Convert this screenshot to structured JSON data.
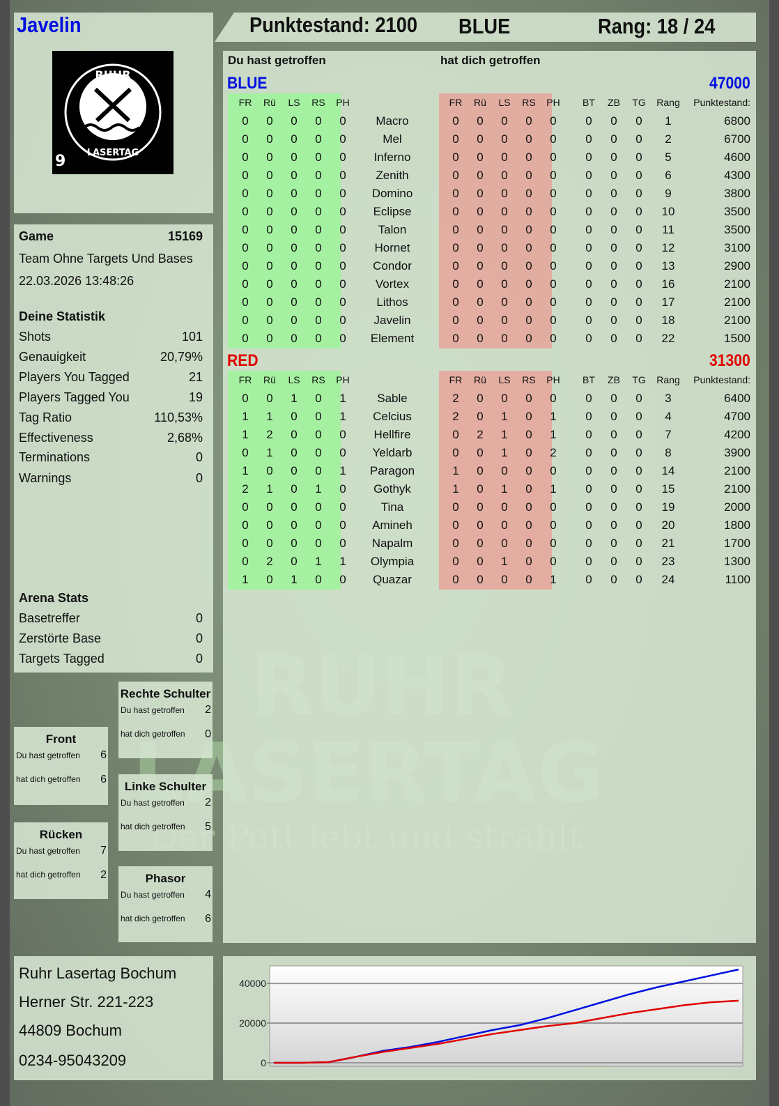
{
  "player": {
    "name": "Javelin",
    "logo_text": [
      "RUHR",
      "LASERTAG"
    ],
    "logo_badge": "9"
  },
  "header": {
    "score_label": "Punktestand: 2100",
    "team": "BLUE",
    "rank_label": "Rang: 18 / 24"
  },
  "colors": {
    "blue": "#0010e0",
    "red": "#e00000",
    "hit_green": "#9ef59a",
    "hit_red": "#e6a59a"
  },
  "game": {
    "label": "Game",
    "id": "15169",
    "mode": "Team Ohne Targets Und Bases",
    "datetime": "22.03.2026 13:48:26"
  },
  "stats": {
    "title": "Deine Statistik",
    "rows": [
      {
        "label": "Shots",
        "value": "101"
      },
      {
        "label": "Genauigkeit",
        "value": "20,79%"
      },
      {
        "label": "Players You Tagged",
        "value": "21"
      },
      {
        "label": "Players Tagged You",
        "value": "19"
      },
      {
        "label": "Tag Ratio",
        "value": "110,53%"
      },
      {
        "label": "Effectiveness",
        "value": "2,68%"
      },
      {
        "label": "Terminations",
        "value": "0"
      },
      {
        "label": "Warnings",
        "value": "0"
      }
    ]
  },
  "arena": {
    "title": "Arena Stats",
    "rows": [
      {
        "label": "Basetreffer",
        "value": "0"
      },
      {
        "label": "Zerstörte Base",
        "value": "0"
      },
      {
        "label": "Targets Tagged",
        "value": "0"
      }
    ]
  },
  "hit_zones": [
    {
      "title": "Rechte Schulter",
      "you_hit_label": "Du hast getroffen",
      "you_hit": "2",
      "hit_you_label": "hat dich getroffen",
      "hit_you": "0"
    },
    {
      "title": "Front",
      "you_hit_label": "Du hast getroffen",
      "you_hit": "6",
      "hit_you_label": "hat dich getroffen",
      "hit_you": "6"
    },
    {
      "title": "Linke Schulter",
      "you_hit_label": "Du hast getroffen",
      "you_hit": "2",
      "hit_you_label": "hat dich getroffen",
      "hit_you": "5"
    },
    {
      "title": "Rücken",
      "you_hit_label": "Du hast getroffen",
      "you_hit": "7",
      "hit_you_label": "hat dich getroffen",
      "hit_you": "2"
    },
    {
      "title": "Phasor",
      "you_hit_label": "Du hast getroffen",
      "you_hit": "4",
      "hit_you_label": "hat dich getroffen",
      "hit_you": "6"
    }
  ],
  "table": {
    "you_hit_label": "Du hast getroffen",
    "hit_you_label": "hat dich getroffen",
    "hit_columns": [
      "FR",
      "Rü",
      "LS",
      "RS",
      "PH"
    ],
    "extra_columns": [
      "BT",
      "ZB",
      "TG",
      "Rang"
    ],
    "score_column": "Punktestand:",
    "teams": [
      {
        "name": "BLUE",
        "total": "47000",
        "color": "#0010e0",
        "players": [
          {
            "name": "Macro",
            "you_hit": [
              0,
              0,
              0,
              0,
              0
            ],
            "hit_you": [
              0,
              0,
              0,
              0,
              0
            ],
            "extra": [
              0,
              0,
              0,
              1
            ],
            "score": "6800"
          },
          {
            "name": "Mel",
            "you_hit": [
              0,
              0,
              0,
              0,
              0
            ],
            "hit_you": [
              0,
              0,
              0,
              0,
              0
            ],
            "extra": [
              0,
              0,
              0,
              2
            ],
            "score": "6700"
          },
          {
            "name": "Inferno",
            "you_hit": [
              0,
              0,
              0,
              0,
              0
            ],
            "hit_you": [
              0,
              0,
              0,
              0,
              0
            ],
            "extra": [
              0,
              0,
              0,
              5
            ],
            "score": "4600"
          },
          {
            "name": "Zenith",
            "you_hit": [
              0,
              0,
              0,
              0,
              0
            ],
            "hit_you": [
              0,
              0,
              0,
              0,
              0
            ],
            "extra": [
              0,
              0,
              0,
              6
            ],
            "score": "4300"
          },
          {
            "name": "Domino",
            "you_hit": [
              0,
              0,
              0,
              0,
              0
            ],
            "hit_you": [
              0,
              0,
              0,
              0,
              0
            ],
            "extra": [
              0,
              0,
              0,
              9
            ],
            "score": "3800"
          },
          {
            "name": "Eclipse",
            "you_hit": [
              0,
              0,
              0,
              0,
              0
            ],
            "hit_you": [
              0,
              0,
              0,
              0,
              0
            ],
            "extra": [
              0,
              0,
              0,
              10
            ],
            "score": "3500"
          },
          {
            "name": "Talon",
            "you_hit": [
              0,
              0,
              0,
              0,
              0
            ],
            "hit_you": [
              0,
              0,
              0,
              0,
              0
            ],
            "extra": [
              0,
              0,
              0,
              11
            ],
            "score": "3500"
          },
          {
            "name": "Hornet",
            "you_hit": [
              0,
              0,
              0,
              0,
              0
            ],
            "hit_you": [
              0,
              0,
              0,
              0,
              0
            ],
            "extra": [
              0,
              0,
              0,
              12
            ],
            "score": "3100"
          },
          {
            "name": "Condor",
            "you_hit": [
              0,
              0,
              0,
              0,
              0
            ],
            "hit_you": [
              0,
              0,
              0,
              0,
              0
            ],
            "extra": [
              0,
              0,
              0,
              13
            ],
            "score": "2900"
          },
          {
            "name": "Vortex",
            "you_hit": [
              0,
              0,
              0,
              0,
              0
            ],
            "hit_you": [
              0,
              0,
              0,
              0,
              0
            ],
            "extra": [
              0,
              0,
              0,
              16
            ],
            "score": "2100"
          },
          {
            "name": "Lithos",
            "you_hit": [
              0,
              0,
              0,
              0,
              0
            ],
            "hit_you": [
              0,
              0,
              0,
              0,
              0
            ],
            "extra": [
              0,
              0,
              0,
              17
            ],
            "score": "2100"
          },
          {
            "name": "Javelin",
            "you_hit": [
              0,
              0,
              0,
              0,
              0
            ],
            "hit_you": [
              0,
              0,
              0,
              0,
              0
            ],
            "extra": [
              0,
              0,
              0,
              18
            ],
            "score": "2100"
          },
          {
            "name": "Element",
            "you_hit": [
              0,
              0,
              0,
              0,
              0
            ],
            "hit_you": [
              0,
              0,
              0,
              0,
              0
            ],
            "extra": [
              0,
              0,
              0,
              22
            ],
            "score": "1500"
          }
        ]
      },
      {
        "name": "RED",
        "total": "31300",
        "color": "#e00000",
        "players": [
          {
            "name": "Sable",
            "you_hit": [
              0,
              0,
              1,
              0,
              1
            ],
            "hit_you": [
              2,
              0,
              0,
              0,
              0
            ],
            "extra": [
              0,
              0,
              0,
              3
            ],
            "score": "6400"
          },
          {
            "name": "Celcius",
            "you_hit": [
              1,
              1,
              0,
              0,
              1
            ],
            "hit_you": [
              2,
              0,
              1,
              0,
              1
            ],
            "extra": [
              0,
              0,
              0,
              4
            ],
            "score": "4700"
          },
          {
            "name": "Hellfire",
            "you_hit": [
              1,
              2,
              0,
              0,
              0
            ],
            "hit_you": [
              0,
              2,
              1,
              0,
              1
            ],
            "extra": [
              0,
              0,
              0,
              7
            ],
            "score": "4200"
          },
          {
            "name": "Yeldarb",
            "you_hit": [
              0,
              1,
              0,
              0,
              0
            ],
            "hit_you": [
              0,
              0,
              1,
              0,
              2
            ],
            "extra": [
              0,
              0,
              0,
              8
            ],
            "score": "3900"
          },
          {
            "name": "Paragon",
            "you_hit": [
              1,
              0,
              0,
              0,
              1
            ],
            "hit_you": [
              1,
              0,
              0,
              0,
              0
            ],
            "extra": [
              0,
              0,
              0,
              14
            ],
            "score": "2100"
          },
          {
            "name": "Gothyk",
            "you_hit": [
              2,
              1,
              0,
              1,
              0
            ],
            "hit_you": [
              1,
              0,
              1,
              0,
              1
            ],
            "extra": [
              0,
              0,
              0,
              15
            ],
            "score": "2100"
          },
          {
            "name": "Tina",
            "you_hit": [
              0,
              0,
              0,
              0,
              0
            ],
            "hit_you": [
              0,
              0,
              0,
              0,
              0
            ],
            "extra": [
              0,
              0,
              0,
              19
            ],
            "score": "2000"
          },
          {
            "name": "Amineh",
            "you_hit": [
              0,
              0,
              0,
              0,
              0
            ],
            "hit_you": [
              0,
              0,
              0,
              0,
              0
            ],
            "extra": [
              0,
              0,
              0,
              20
            ],
            "score": "1800"
          },
          {
            "name": "Napalm",
            "you_hit": [
              0,
              0,
              0,
              0,
              0
            ],
            "hit_you": [
              0,
              0,
              0,
              0,
              0
            ],
            "extra": [
              0,
              0,
              0,
              21
            ],
            "score": "1700"
          },
          {
            "name": "Olympia",
            "you_hit": [
              0,
              2,
              0,
              1,
              1
            ],
            "hit_you": [
              0,
              0,
              1,
              0,
              0
            ],
            "extra": [
              0,
              0,
              0,
              23
            ],
            "score": "1300"
          },
          {
            "name": "Quazar",
            "you_hit": [
              1,
              0,
              1,
              0,
              0
            ],
            "hit_you": [
              0,
              0,
              0,
              0,
              1
            ],
            "extra": [
              0,
              0,
              0,
              24
            ],
            "score": "1100"
          }
        ]
      }
    ]
  },
  "address": {
    "lines": [
      "Ruhr Lasertag Bochum",
      "Herner Str. 221-223",
      "44809 Bochum",
      "0234-95043209"
    ]
  },
  "watermark": {
    "line1": "RUHR",
    "line2": "LASERTAG",
    "slogan": "Der Pott lebt und strahlt"
  },
  "chart_data": {
    "type": "line",
    "ylim": [
      0,
      48800
    ],
    "yticks": [
      0,
      20000,
      40000
    ],
    "ytick_labels": [
      "0",
      "20000",
      "40000"
    ],
    "grid": true,
    "series": [
      {
        "color": "#0010e0",
        "values": [
          0,
          0,
          300,
          3000,
          6000,
          8000,
          10500,
          13500,
          16500,
          19000,
          22500,
          26500,
          30500,
          34500,
          38000,
          41000,
          44000,
          47000
        ]
      },
      {
        "color": "#e00000",
        "values": [
          0,
          0,
          300,
          3000,
          5500,
          7500,
          9500,
          12000,
          14500,
          16500,
          18500,
          20000,
          22500,
          25000,
          27000,
          29000,
          30500,
          31300
        ]
      }
    ]
  }
}
